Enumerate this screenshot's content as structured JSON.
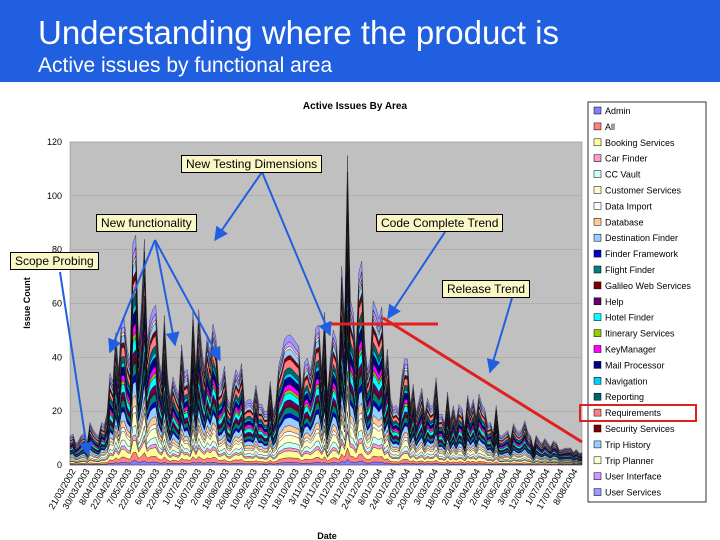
{
  "slide": {
    "title": "Understanding where the product is",
    "subtitle": "Active issues by functional area"
  },
  "callouts": {
    "new_testing_dimensions": "New Testing Dimensions",
    "new_functionality": "New functionality",
    "code_complete_trend": "Code Complete Trend",
    "scope_probing": "Scope Probing",
    "release_trend": "Release Trend"
  },
  "colors": {
    "header": "#1f5fe0",
    "plot_bg": "#c0c0c0",
    "highlight": "#e02020",
    "arrow": "#1f5fe0"
  },
  "chart_data": {
    "type": "area",
    "stacked": true,
    "title": "Active Issues By Area",
    "xlabel": "Date",
    "ylabel": "Issue Count",
    "ylim": [
      0,
      120
    ],
    "yticks": [
      "0",
      "20",
      "40",
      "60",
      "80",
      "100",
      "120"
    ],
    "x_tick_labels": [
      "21/03/2002",
      "30/03/2003",
      "8/04/2003",
      "22/04/2003",
      "7/05/2003",
      "22/05/2003",
      "6/06/2003",
      "22/06/2003",
      "1/07/2003",
      "16/07/2003",
      "2/08/2003",
      "18/08/2003",
      "26/08/2003",
      "10/09/2003",
      "25/09/2003",
      "10/10/2003",
      "18/10/2003",
      "3/11/2003",
      "18/11/2003",
      "1/12/2003",
      "9/12/2003",
      "24/12/2003",
      "8/01/2004",
      "24/01/2004",
      "6/02/2004",
      "20/02/2004",
      "3/03/2004",
      "18/03/2004",
      "2/04/2004",
      "16/04/2004",
      "2/05/2004",
      "18/05/2004",
      "3/06/2004",
      "12/06/2004",
      "1/07/2004",
      "17/07/2004",
      "8/08/2004"
    ],
    "legend_position": "right",
    "highlighted_legend_entry": "Requirements",
    "series": [
      {
        "name": "Admin",
        "color": "#8080ff"
      },
      {
        "name": "All",
        "color": "#ff8080"
      },
      {
        "name": "Booking Services",
        "color": "#ffff99"
      },
      {
        "name": "Car Finder",
        "color": "#ff99cc"
      },
      {
        "name": "CC Vault",
        "color": "#ccffff"
      },
      {
        "name": "Customer Services",
        "color": "#ffffcc"
      },
      {
        "name": "Data Import",
        "color": "#ffffff"
      },
      {
        "name": "Database",
        "color": "#ffcc99"
      },
      {
        "name": "Destination Finder",
        "color": "#99ccff"
      },
      {
        "name": "Finder Framework",
        "color": "#0000cc"
      },
      {
        "name": "Flight Finder",
        "color": "#008080"
      },
      {
        "name": "Galileo Web Services",
        "color": "#800000"
      },
      {
        "name": "Help",
        "color": "#660066"
      },
      {
        "name": "Hotel Finder",
        "color": "#00ffff"
      },
      {
        "name": "Itinerary Services",
        "color": "#99cc00"
      },
      {
        "name": "KeyManager",
        "color": "#ff00ff"
      },
      {
        "name": "Mail Processor",
        "color": "#000080"
      },
      {
        "name": "Navigation",
        "color": "#00ccff"
      },
      {
        "name": "Reporting",
        "color": "#006666"
      },
      {
        "name": "Requirements",
        "color": "#ff8080"
      },
      {
        "name": "Security Services",
        "color": "#800000"
      },
      {
        "name": "Trip History",
        "color": "#99ccff"
      },
      {
        "name": "Trip Planner",
        "color": "#ffffcc"
      },
      {
        "name": "User Interface",
        "color": "#cc99ff"
      },
      {
        "name": "User Services",
        "color": "#9999ff"
      }
    ]
  }
}
